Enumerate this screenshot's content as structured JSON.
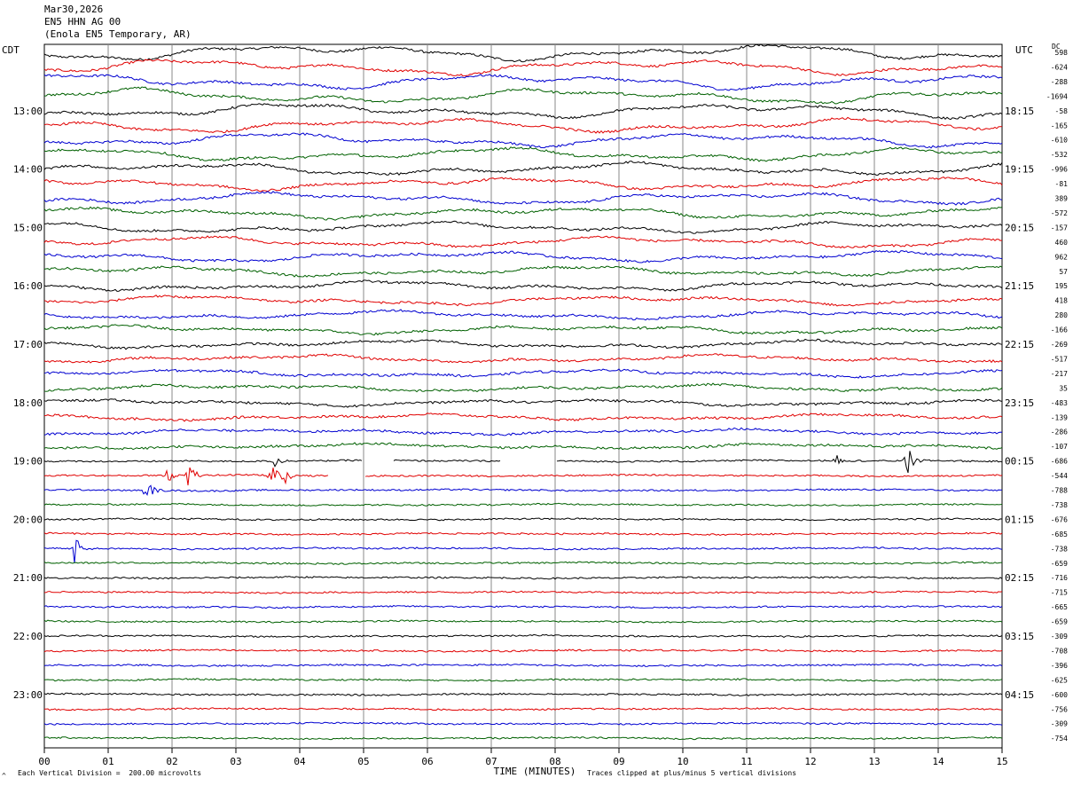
{
  "header": {
    "date": "Mar30,2026",
    "channel": "EN5 HHN AG 00",
    "station": "(Enola EN5 Temporary, AR)"
  },
  "labels": {
    "left_tz": "CDT",
    "right_tz": "UTC",
    "dc": "DC"
  },
  "footer": {
    "scale_note": "Each Vertical Division =  200.00 microvolts",
    "clip_note": "Traces clipped at plus/minus 5 vertical divisions",
    "mark": "^"
  },
  "colors": [
    "#000000",
    "#e00000",
    "#0000d0",
    "#006000"
  ],
  "chart_data": {
    "type": "line",
    "title": "",
    "xlabel": "TIME (MINUTES)",
    "ylabel": "",
    "xlim": [
      0,
      15
    ],
    "x_ticks": [
      "00",
      "01",
      "02",
      "03",
      "04",
      "05",
      "06",
      "07",
      "08",
      "09",
      "10",
      "11",
      "12",
      "13",
      "14",
      "15"
    ],
    "grid": true,
    "left_time_labels": [
      "13:00",
      "14:00",
      "15:00",
      "16:00",
      "17:00",
      "18:00",
      "19:00",
      "20:00",
      "21:00",
      "22:00",
      "23:00"
    ],
    "right_time_labels": [
      "18:15",
      "19:15",
      "20:15",
      "21:15",
      "22:15",
      "23:15",
      "00:15",
      "01:15",
      "02:15",
      "03:15",
      "04:15"
    ],
    "dc_offsets": [
      598,
      -624,
      -288,
      -1694,
      -58,
      -165,
      -610,
      -532,
      -996,
      -81,
      389,
      -572,
      -157,
      460,
      962,
      57,
      195,
      418,
      280,
      -166,
      -269,
      -517,
      -217,
      35,
      -483,
      -139,
      -286,
      -107,
      -686,
      -544,
      -788,
      -738,
      -676,
      -685,
      -738,
      -659,
      -716,
      -715,
      -665,
      -659,
      -309,
      -708,
      -396,
      -625,
      -600,
      -756,
      -309,
      -754
    ],
    "events": [
      {
        "row": 28,
        "minute": 3.6,
        "amp": 0.6
      },
      {
        "row": 28,
        "minute": 12.4,
        "amp": 0.5
      },
      {
        "row": 28,
        "minute": 13.5,
        "amp": 1.6
      },
      {
        "row": 29,
        "minute": 1.9,
        "amp": 1.0
      },
      {
        "row": 29,
        "minute": 2.25,
        "amp": 1.2
      },
      {
        "row": 29,
        "minute": 3.55,
        "amp": 1.3
      },
      {
        "row": 29,
        "minute": 3.75,
        "amp": 1.0
      },
      {
        "row": 30,
        "minute": 1.6,
        "amp": 1.0
      },
      {
        "row": 34,
        "minute": 0.45,
        "amp": 1.5
      }
    ],
    "gaps": [
      {
        "row": 28,
        "from": 5.0,
        "to": 5.45
      },
      {
        "row": 28,
        "from": 7.15,
        "to": 8.0
      },
      {
        "row": 29,
        "from": 4.45,
        "to": 5.0
      }
    ]
  }
}
